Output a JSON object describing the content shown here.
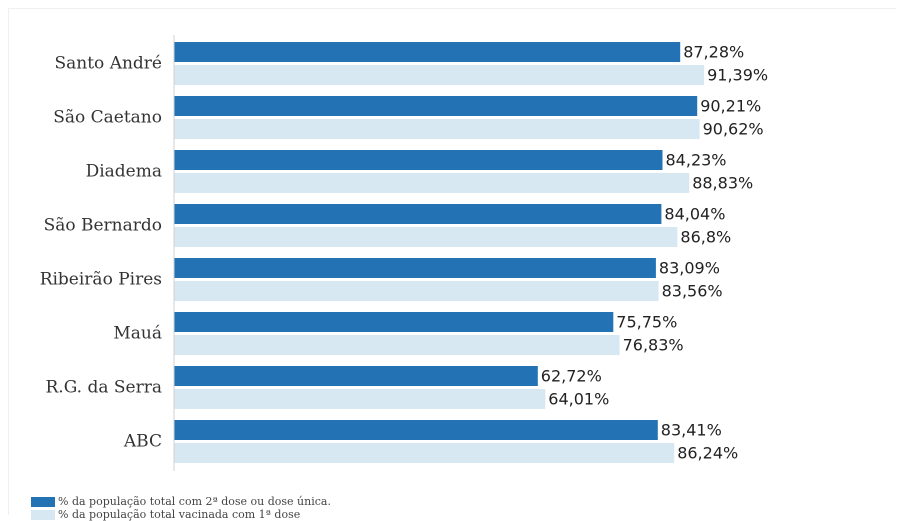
{
  "chart_data": {
    "type": "bar",
    "orientation": "horizontal",
    "categories": [
      "Santo André",
      "São Caetano",
      "Diadema",
      "São Bernardo",
      "Ribeirão Pires",
      "Mauá",
      "R.G. da Serra",
      "ABC"
    ],
    "series": [
      {
        "name": "% da população total com 2ª dose ou dose única.",
        "color": "#2272b4",
        "values": [
          87.28,
          90.21,
          84.23,
          84.04,
          83.09,
          75.75,
          62.72,
          83.41
        ],
        "labels": [
          "87,28%",
          "90,21%",
          "84,23%",
          "84,04%",
          "83,09%",
          "75,75%",
          "62,72%",
          "83,41%"
        ]
      },
      {
        "name": "% da população total vacinada com 1ª dose",
        "color": "#d8e8f2",
        "values": [
          91.39,
          90.62,
          88.83,
          86.8,
          83.56,
          76.83,
          64.01,
          86.24
        ],
        "labels": [
          "91,39%",
          "90,62%",
          "88,83%",
          "86,8%",
          "83,56%",
          "76,83%",
          "64,01%",
          "86,24%"
        ]
      }
    ],
    "xlim": [
      0,
      100
    ],
    "grid": false,
    "legend_position": "bottom-left"
  }
}
